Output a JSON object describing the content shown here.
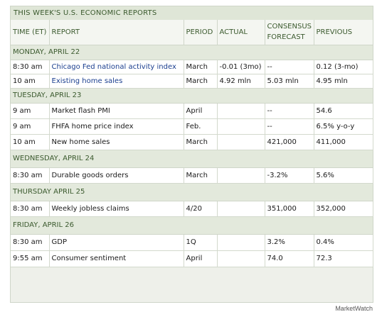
{
  "title": "THIS WEEK'S U.S. ECONOMIC REPORTS",
  "columns": {
    "time": "TIME (ET)",
    "report": "REPORT",
    "period": "PERIOD",
    "actual": "ACTUAL",
    "consensus_line1": "CONSENSUS",
    "consensus_line2": "FORECAST",
    "previous": "PREVIOUS"
  },
  "days": [
    {
      "label": "MONDAY, APRIL 22",
      "rows": [
        {
          "time": "8:30 am",
          "report": "Chicago Fed national activity index",
          "link": true,
          "period": "March",
          "actual": "-0.01 (3mo)",
          "consensus": "--",
          "previous": "0.12 (3-mo)"
        },
        {
          "time": "10 am",
          "report": "Existing home sales",
          "link": true,
          "period": "March",
          "actual": "4.92 mln",
          "consensus": "5.03 mln",
          "previous": "4.95 mln"
        }
      ]
    },
    {
      "label": "TUESDAY, APRIL 23",
      "rows": [
        {
          "time": "9 am",
          "report": "Market flash PMI",
          "link": false,
          "period": "April",
          "actual": "",
          "consensus": "--",
          "previous": "54.6"
        },
        {
          "time": "9 am",
          "report": "FHFA home price index",
          "link": false,
          "period": "Feb.",
          "actual": "",
          "consensus": "--",
          "previous": "6.5% y-o-y"
        },
        {
          "time": "10 am",
          "report": "New home sales",
          "link": false,
          "period": "March",
          "actual": "",
          "consensus": "421,000",
          "previous": "411,000"
        }
      ]
    },
    {
      "label": "WEDNESDAY, APRIL 24",
      "rows": [
        {
          "time": "8:30 am",
          "report": "Durable goods orders",
          "link": false,
          "period": "March",
          "actual": "",
          "consensus": "-3.2%",
          "previous": "5.6%"
        }
      ]
    },
    {
      "label": "THURSDAY APRIL 25",
      "rows": [
        {
          "time": "8:30 am",
          "report": "Weekly jobless claims",
          "link": false,
          "period": "4/20",
          "actual": "",
          "consensus": "351,000",
          "previous": "352,000"
        }
      ]
    },
    {
      "label": "FRIDAY, APRIL 26",
      "rows": [
        {
          "time": "8:30 am",
          "report": "GDP",
          "link": false,
          "period": "1Q",
          "actual": "",
          "consensus": "3.2%",
          "previous": "0.4%"
        },
        {
          "time": "9:55 am",
          "report": "Consumer sentiment",
          "link": false,
          "period": "April",
          "actual": "",
          "consensus": "74.0",
          "previous": "72.3"
        }
      ]
    }
  ],
  "credit": "MarketWatch"
}
